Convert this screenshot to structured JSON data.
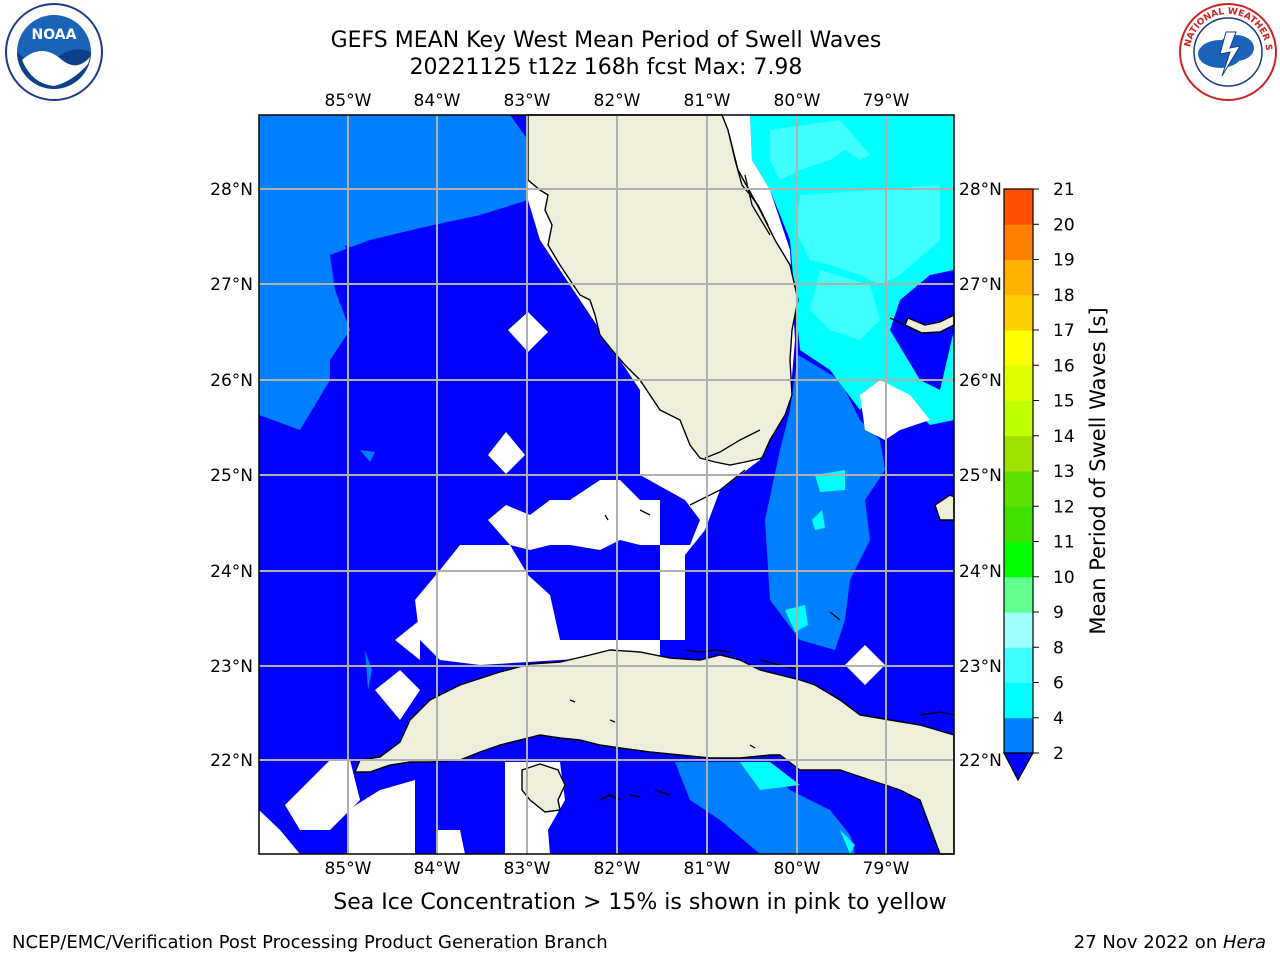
{
  "header": {
    "title_line1": "GEFS MEAN Key West Mean Period of Swell Waves",
    "title_line2": "20221125 t12z 168h fcst   Max: 7.98"
  },
  "map": {
    "lon_labels": [
      "85°W",
      "84°W",
      "83°W",
      "82°W",
      "81°W",
      "80°W",
      "79°W"
    ],
    "lat_labels": [
      "28°N",
      "27°N",
      "26°N",
      "25°N",
      "24°N",
      "23°N",
      "22°N"
    ],
    "colors": {
      "land": "#eeeedd",
      "dark_blue": "#0000ff",
      "mid_blue": "#0080ff",
      "cyan": "#00ffff",
      "light_cyan": "#3fffff",
      "grid": "#b0b0b0"
    }
  },
  "colorbar": {
    "label": "Mean Period of Swell Waves [s]",
    "ticks": [
      "2",
      "4",
      "6",
      "8",
      "9",
      "10",
      "11",
      "12",
      "13",
      "14",
      "15",
      "16",
      "17",
      "18",
      "19",
      "20",
      "21"
    ],
    "colors": [
      "#0080ff",
      "#00ffff",
      "#3fffff",
      "#9fffff",
      "#60ff90",
      "#00ff00",
      "#3fe000",
      "#60e000",
      "#a0e000",
      "#c0ff00",
      "#e0ff00",
      "#ffff00",
      "#ffd000",
      "#ffb000",
      "#ff8000",
      "#ff5000",
      "#ff0000"
    ]
  },
  "subtitle": "Sea Ice Concentration > 15% is shown in pink to yellow",
  "footer": {
    "left": "NCEP/EMC/Verification Post Processing Product Generation Branch",
    "right": "27 Nov 2022 on ",
    "right_italic": "Hera"
  },
  "logos": {
    "noaa": "NOAA",
    "nws": "NATIONAL WEATHER SERVICE"
  }
}
